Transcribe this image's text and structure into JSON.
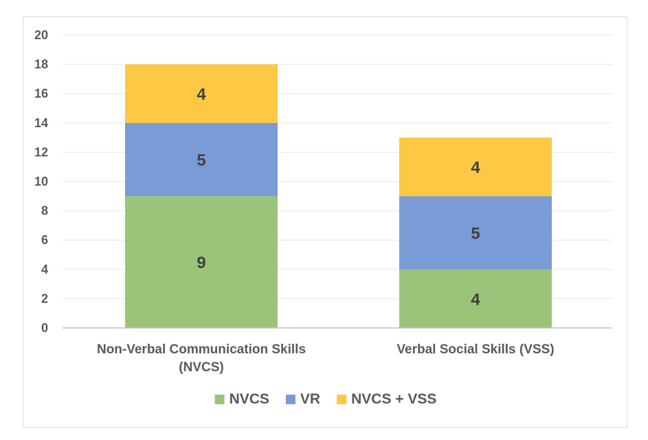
{
  "chart_data": {
    "type": "bar",
    "stacked": true,
    "categories": [
      [
        "Non-Verbal Communication Skills",
        "(NVCS)"
      ],
      [
        "Verbal Social Skills (VSS)"
      ]
    ],
    "series": [
      {
        "name": "NVCS",
        "values": [
          9,
          4
        ],
        "color": "#9bc47a"
      },
      {
        "name": "VR",
        "values": [
          5,
          5
        ],
        "color": "#799bd6"
      },
      {
        "name": "NVCS + VSS",
        "values": [
          4,
          4
        ],
        "color": "#fdc843"
      }
    ],
    "ylim": [
      0,
      20
    ],
    "yticks": [
      0,
      2,
      4,
      6,
      8,
      10,
      12,
      14,
      16,
      18,
      20
    ],
    "grid": true,
    "legend_position": "bottom",
    "data_labels": true
  }
}
